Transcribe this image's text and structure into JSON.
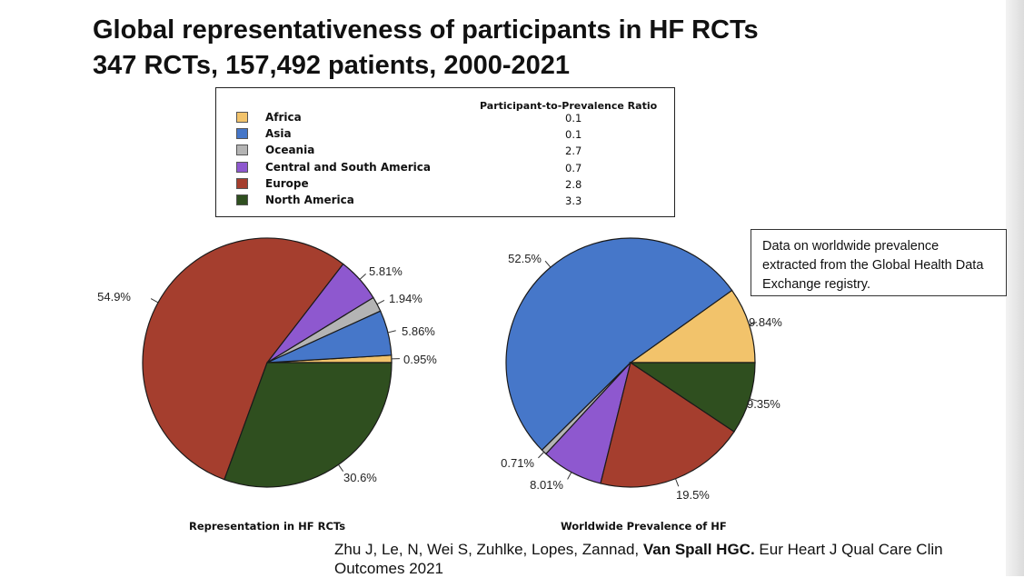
{
  "title_line1": "Global representativeness of participants in HF RCTs",
  "title_line2": "347 RCTs, 157,492 patients, 2000-2021",
  "legend": {
    "header": "Participant-to-Prevalence Ratio",
    "items": [
      {
        "label": "Africa",
        "ratio": "0.1",
        "color": "#f2c36b"
      },
      {
        "label": "Asia",
        "ratio": "0.1",
        "color": "#4677c9"
      },
      {
        "label": "Oceania",
        "ratio": "2.7",
        "color": "#b4b4b4"
      },
      {
        "label": "Central and South America",
        "ratio": "0.7",
        "color": "#8e58cf"
      },
      {
        "label": "Europe",
        "ratio": "2.8",
        "color": "#a53e2e"
      },
      {
        "label": "North America",
        "ratio": "3.3",
        "color": "#2f4f1f"
      }
    ]
  },
  "note": "Data on worldwide prevalence extracted from the Global Health Data Exchange registry.",
  "chart_data": [
    {
      "type": "pie",
      "title": "Representation in HF RCTs",
      "slices": [
        {
          "name": "Africa",
          "value": 0.95,
          "label": "0.95%"
        },
        {
          "name": "Asia",
          "value": 5.86,
          "label": "5.86%"
        },
        {
          "name": "Oceania",
          "value": 1.94,
          "label": "1.94%"
        },
        {
          "name": "Central and South America",
          "value": 5.81,
          "label": "5.81%"
        },
        {
          "name": "Europe",
          "value": 54.9,
          "label": "54.9%"
        },
        {
          "name": "North America",
          "value": 30.6,
          "label": "30.6%"
        }
      ]
    },
    {
      "type": "pie",
      "title": "Worldwide Prevalence of HF",
      "slices": [
        {
          "name": "Africa",
          "value": 9.84,
          "label": "9.84%"
        },
        {
          "name": "Asia",
          "value": 52.5,
          "label": "52.5%"
        },
        {
          "name": "Oceania",
          "value": 0.71,
          "label": "0.71%"
        },
        {
          "name": "Central and South America",
          "value": 8.01,
          "label": "8.01%"
        },
        {
          "name": "Europe",
          "value": 19.5,
          "label": "19.5%"
        },
        {
          "name": "North America",
          "value": 9.35,
          "label": "9.35%"
        }
      ]
    }
  ],
  "citation": {
    "prefix": "Zhu J, Le, N, Wei S, Zuhlke, Lopes, Zannad, ",
    "bold": "Van Spall HGC.",
    "suffix": " Eur Heart J Qual Care Clin Outcomes 2021"
  }
}
